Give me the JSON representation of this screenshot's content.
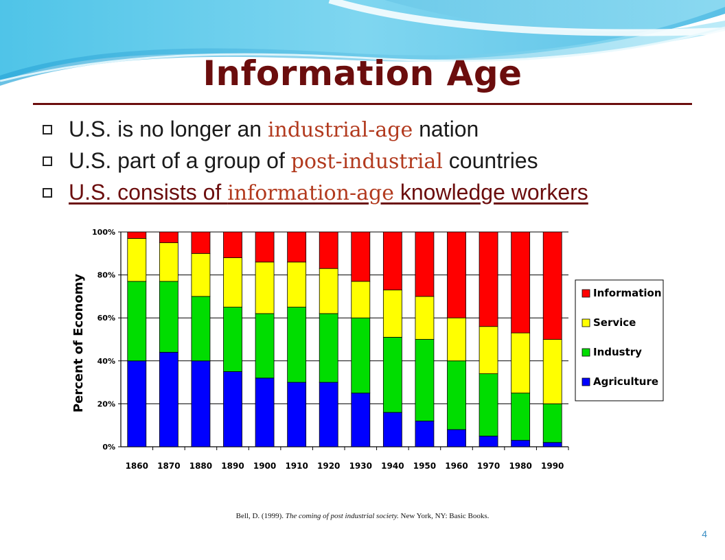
{
  "title": "Information Age",
  "bullets": [
    {
      "pre": "U.S. is no longer an ",
      "kw": "industrial-age",
      "post": " nation"
    },
    {
      "pre": "U.S. part of a group of ",
      "kw": "post-industrial",
      "post": " countries"
    },
    {
      "pre": "U.S. consists of ",
      "kw": "information-age",
      "post": " knowledge workers"
    }
  ],
  "citation": {
    "pre": "Bell, D. (1999). ",
    "italic": "The coming of post industrial society.",
    "post": " New York, NY: Basic Books."
  },
  "page_number": "4",
  "chart_data": {
    "type": "bar",
    "stacked": true,
    "title": "",
    "xlabel": "",
    "ylabel": "Percent of Economy",
    "ylim": [
      0,
      100
    ],
    "yticks": [
      "0%",
      "20%",
      "40%",
      "60%",
      "80%",
      "100%"
    ],
    "grid": true,
    "legend_position": "right",
    "categories": [
      "1860",
      "1870",
      "1880",
      "1890",
      "1900",
      "1910",
      "1920",
      "1930",
      "1940",
      "1950",
      "1960",
      "1970",
      "1980",
      "1990"
    ],
    "series": [
      {
        "name": "Agriculture",
        "color": "#0000ff",
        "values": [
          40,
          44,
          40,
          35,
          32,
          30,
          30,
          25,
          16,
          12,
          8,
          5,
          3,
          2
        ]
      },
      {
        "name": "Industry",
        "color": "#00dd00",
        "values": [
          37,
          33,
          30,
          30,
          30,
          35,
          32,
          35,
          35,
          38,
          32,
          29,
          22,
          18
        ]
      },
      {
        "name": "Service",
        "color": "#ffff00",
        "values": [
          20,
          18,
          20,
          23,
          24,
          21,
          21,
          17,
          22,
          20,
          20,
          22,
          28,
          30
        ]
      },
      {
        "name": "Information",
        "color": "#ff0000",
        "values": [
          3,
          5,
          10,
          12,
          14,
          14,
          17,
          23,
          27,
          30,
          40,
          44,
          47,
          50
        ]
      }
    ],
    "legend_order": [
      "Information",
      "Service",
      "Industry",
      "Agriculture"
    ]
  }
}
